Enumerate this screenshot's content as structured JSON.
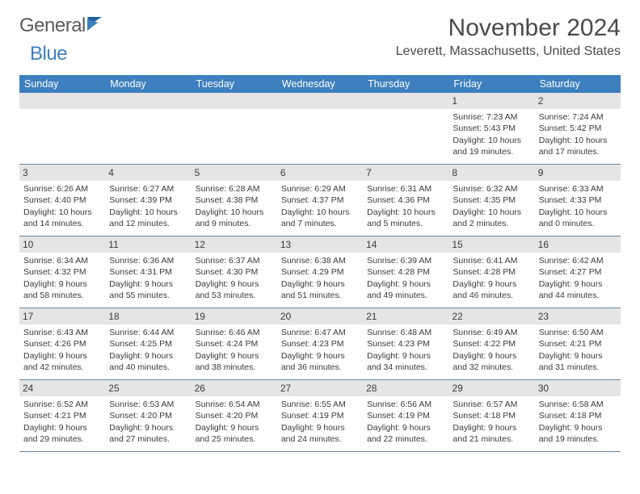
{
  "logo": {
    "part1": "General",
    "part2": "Blue"
  },
  "header": {
    "month_title": "November 2024",
    "location": "Leverett, Massachusetts, United States"
  },
  "colors": {
    "header_bar": "#3d7fbf",
    "day_strip": "#e5e5e5",
    "text": "#3a3a3a",
    "rule": "#6a87a3"
  },
  "weekdays": [
    "Sunday",
    "Monday",
    "Tuesday",
    "Wednesday",
    "Thursday",
    "Friday",
    "Saturday"
  ],
  "weeks": [
    [
      {
        "n": "",
        "sr": "",
        "ss": "",
        "dl1": "",
        "dl2": "",
        "empty": true
      },
      {
        "n": "",
        "sr": "",
        "ss": "",
        "dl1": "",
        "dl2": "",
        "empty": true
      },
      {
        "n": "",
        "sr": "",
        "ss": "",
        "dl1": "",
        "dl2": "",
        "empty": true
      },
      {
        "n": "",
        "sr": "",
        "ss": "",
        "dl1": "",
        "dl2": "",
        "empty": true
      },
      {
        "n": "",
        "sr": "",
        "ss": "",
        "dl1": "",
        "dl2": "",
        "empty": true
      },
      {
        "n": "1",
        "sr": "Sunrise: 7:23 AM",
        "ss": "Sunset: 5:43 PM",
        "dl1": "Daylight: 10 hours",
        "dl2": "and 19 minutes."
      },
      {
        "n": "2",
        "sr": "Sunrise: 7:24 AM",
        "ss": "Sunset: 5:42 PM",
        "dl1": "Daylight: 10 hours",
        "dl2": "and 17 minutes."
      }
    ],
    [
      {
        "n": "3",
        "sr": "Sunrise: 6:26 AM",
        "ss": "Sunset: 4:40 PM",
        "dl1": "Daylight: 10 hours",
        "dl2": "and 14 minutes."
      },
      {
        "n": "4",
        "sr": "Sunrise: 6:27 AM",
        "ss": "Sunset: 4:39 PM",
        "dl1": "Daylight: 10 hours",
        "dl2": "and 12 minutes."
      },
      {
        "n": "5",
        "sr": "Sunrise: 6:28 AM",
        "ss": "Sunset: 4:38 PM",
        "dl1": "Daylight: 10 hours",
        "dl2": "and 9 minutes."
      },
      {
        "n": "6",
        "sr": "Sunrise: 6:29 AM",
        "ss": "Sunset: 4:37 PM",
        "dl1": "Daylight: 10 hours",
        "dl2": "and 7 minutes."
      },
      {
        "n": "7",
        "sr": "Sunrise: 6:31 AM",
        "ss": "Sunset: 4:36 PM",
        "dl1": "Daylight: 10 hours",
        "dl2": "and 5 minutes."
      },
      {
        "n": "8",
        "sr": "Sunrise: 6:32 AM",
        "ss": "Sunset: 4:35 PM",
        "dl1": "Daylight: 10 hours",
        "dl2": "and 2 minutes."
      },
      {
        "n": "9",
        "sr": "Sunrise: 6:33 AM",
        "ss": "Sunset: 4:33 PM",
        "dl1": "Daylight: 10 hours",
        "dl2": "and 0 minutes."
      }
    ],
    [
      {
        "n": "10",
        "sr": "Sunrise: 6:34 AM",
        "ss": "Sunset: 4:32 PM",
        "dl1": "Daylight: 9 hours",
        "dl2": "and 58 minutes."
      },
      {
        "n": "11",
        "sr": "Sunrise: 6:36 AM",
        "ss": "Sunset: 4:31 PM",
        "dl1": "Daylight: 9 hours",
        "dl2": "and 55 minutes."
      },
      {
        "n": "12",
        "sr": "Sunrise: 6:37 AM",
        "ss": "Sunset: 4:30 PM",
        "dl1": "Daylight: 9 hours",
        "dl2": "and 53 minutes."
      },
      {
        "n": "13",
        "sr": "Sunrise: 6:38 AM",
        "ss": "Sunset: 4:29 PM",
        "dl1": "Daylight: 9 hours",
        "dl2": "and 51 minutes."
      },
      {
        "n": "14",
        "sr": "Sunrise: 6:39 AM",
        "ss": "Sunset: 4:28 PM",
        "dl1": "Daylight: 9 hours",
        "dl2": "and 49 minutes."
      },
      {
        "n": "15",
        "sr": "Sunrise: 6:41 AM",
        "ss": "Sunset: 4:28 PM",
        "dl1": "Daylight: 9 hours",
        "dl2": "and 46 minutes."
      },
      {
        "n": "16",
        "sr": "Sunrise: 6:42 AM",
        "ss": "Sunset: 4:27 PM",
        "dl1": "Daylight: 9 hours",
        "dl2": "and 44 minutes."
      }
    ],
    [
      {
        "n": "17",
        "sr": "Sunrise: 6:43 AM",
        "ss": "Sunset: 4:26 PM",
        "dl1": "Daylight: 9 hours",
        "dl2": "and 42 minutes."
      },
      {
        "n": "18",
        "sr": "Sunrise: 6:44 AM",
        "ss": "Sunset: 4:25 PM",
        "dl1": "Daylight: 9 hours",
        "dl2": "and 40 minutes."
      },
      {
        "n": "19",
        "sr": "Sunrise: 6:46 AM",
        "ss": "Sunset: 4:24 PM",
        "dl1": "Daylight: 9 hours",
        "dl2": "and 38 minutes."
      },
      {
        "n": "20",
        "sr": "Sunrise: 6:47 AM",
        "ss": "Sunset: 4:23 PM",
        "dl1": "Daylight: 9 hours",
        "dl2": "and 36 minutes."
      },
      {
        "n": "21",
        "sr": "Sunrise: 6:48 AM",
        "ss": "Sunset: 4:23 PM",
        "dl1": "Daylight: 9 hours",
        "dl2": "and 34 minutes."
      },
      {
        "n": "22",
        "sr": "Sunrise: 6:49 AM",
        "ss": "Sunset: 4:22 PM",
        "dl1": "Daylight: 9 hours",
        "dl2": "and 32 minutes."
      },
      {
        "n": "23",
        "sr": "Sunrise: 6:50 AM",
        "ss": "Sunset: 4:21 PM",
        "dl1": "Daylight: 9 hours",
        "dl2": "and 31 minutes."
      }
    ],
    [
      {
        "n": "24",
        "sr": "Sunrise: 6:52 AM",
        "ss": "Sunset: 4:21 PM",
        "dl1": "Daylight: 9 hours",
        "dl2": "and 29 minutes."
      },
      {
        "n": "25",
        "sr": "Sunrise: 6:53 AM",
        "ss": "Sunset: 4:20 PM",
        "dl1": "Daylight: 9 hours",
        "dl2": "and 27 minutes."
      },
      {
        "n": "26",
        "sr": "Sunrise: 6:54 AM",
        "ss": "Sunset: 4:20 PM",
        "dl1": "Daylight: 9 hours",
        "dl2": "and 25 minutes."
      },
      {
        "n": "27",
        "sr": "Sunrise: 6:55 AM",
        "ss": "Sunset: 4:19 PM",
        "dl1": "Daylight: 9 hours",
        "dl2": "and 24 minutes."
      },
      {
        "n": "28",
        "sr": "Sunrise: 6:56 AM",
        "ss": "Sunset: 4:19 PM",
        "dl1": "Daylight: 9 hours",
        "dl2": "and 22 minutes."
      },
      {
        "n": "29",
        "sr": "Sunrise: 6:57 AM",
        "ss": "Sunset: 4:18 PM",
        "dl1": "Daylight: 9 hours",
        "dl2": "and 21 minutes."
      },
      {
        "n": "30",
        "sr": "Sunrise: 6:58 AM",
        "ss": "Sunset: 4:18 PM",
        "dl1": "Daylight: 9 hours",
        "dl2": "and 19 minutes."
      }
    ]
  ]
}
